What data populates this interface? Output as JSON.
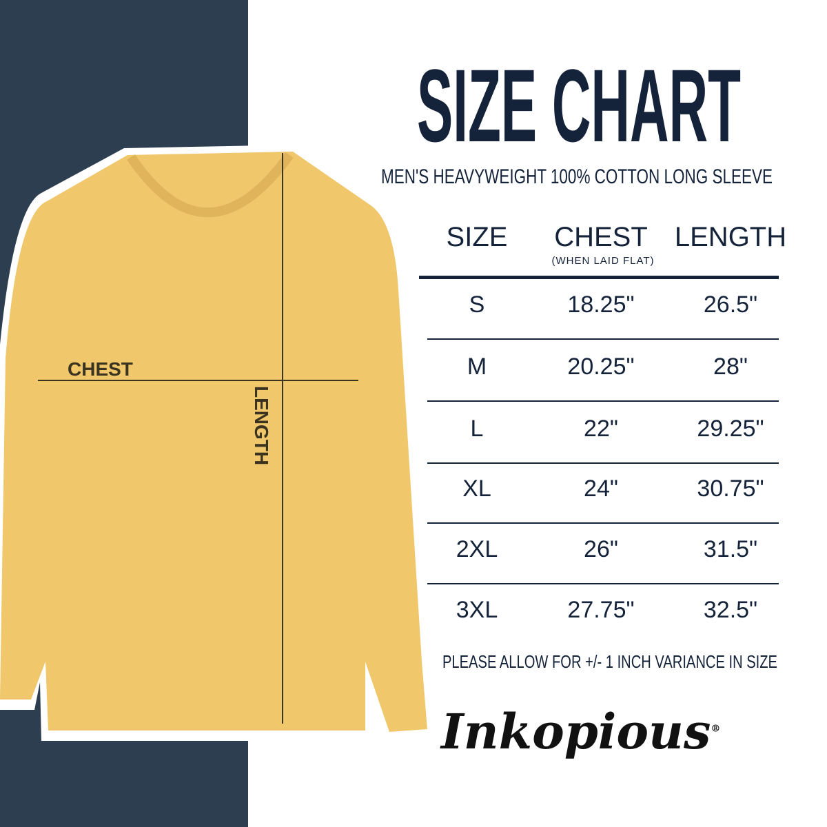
{
  "title": "SIZE CHART",
  "subtitle": "MEN'S HEAVYWEIGHT 100% COTTON LONG SLEEVE",
  "table": {
    "headers": [
      "SIZE",
      "CHEST",
      "LENGTH"
    ],
    "chest_note": "(WHEN LAID FLAT)",
    "rows": [
      [
        "S",
        "18.25\"",
        "26.5\""
      ],
      [
        "M",
        "20.25\"",
        "28\""
      ],
      [
        "L",
        "22\"",
        "29.25\""
      ],
      [
        "XL",
        "24\"",
        "30.75\""
      ],
      [
        "2XL",
        "26\"",
        "31.5\""
      ],
      [
        "3XL",
        "27.75\"",
        "32.5\""
      ]
    ]
  },
  "note": "PLEASE ALLOW FOR +/- 1 INCH VARIANCE IN SIZE",
  "shirt": {
    "chest_label": "CHEST",
    "length_label": "LENGTH",
    "color": "#F0C76A"
  },
  "logo": "Inkopious",
  "colors": {
    "navy": "#14233a",
    "panel": "#2c3e50"
  }
}
